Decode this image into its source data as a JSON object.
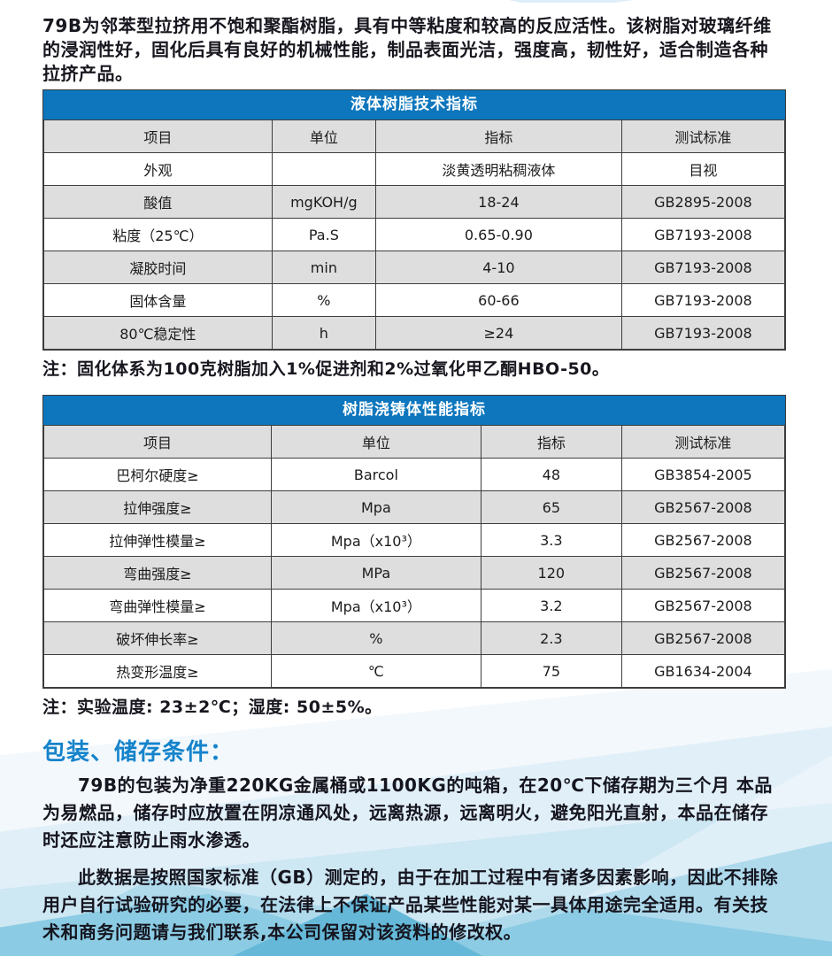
{
  "colors": {
    "table_header_blue": "#0d76bd",
    "section_heading_blue": "#1583cb",
    "row_alt_gray": "#dedede"
  },
  "intro": "79B为邻苯型拉挤用不饱和聚酯树脂，具有中等粘度和较高的反应活性。该树脂对玻璃纤维的浸润性好，固化后具有良好的机械性能，制品表面光洁，强度高，韧性好，适合制造各种拉挤产品。",
  "table1": {
    "title": "液体树脂技术指标",
    "headers": [
      "项目",
      "单位",
      "指标",
      "测试标准"
    ],
    "rows": [
      [
        "外观",
        "",
        "淡黄透明粘稠液体",
        "目视"
      ],
      [
        "酸值",
        "mgKOH/g",
        "18-24",
        "GB2895-2008"
      ],
      [
        "粘度（25℃）",
        "Pa.S",
        "0.65-0.90",
        "GB7193-2008"
      ],
      [
        "凝胶时间",
        "min",
        "4-10",
        "GB7193-2008"
      ],
      [
        "固体含量",
        "%",
        "60-66",
        "GB7193-2008"
      ],
      [
        "80℃稳定性",
        "h",
        "≥24",
        "GB7193-2008"
      ]
    ],
    "note": "注：固化体系为100克树脂加入1%促进剂和2%过氧化甲乙酮HBO-50。"
  },
  "table2": {
    "title": "树脂浇铸体性能指标",
    "headers": [
      "项目",
      "单位",
      "指标",
      "测试标准"
    ],
    "rows": [
      [
        "巴柯尔硬度≥",
        "Barcol",
        "48",
        "GB3854-2005"
      ],
      [
        "拉伸强度≥",
        "Mpa",
        "65",
        "GB2567-2008"
      ],
      [
        "拉伸弹性模量≥",
        "Mpa（x10³）",
        "3.3",
        "GB2567-2008"
      ],
      [
        "弯曲强度≥",
        "MPa",
        "120",
        "GB2567-2008"
      ],
      [
        "弯曲弹性模量≥",
        "Mpa（x10³）",
        "3.2",
        "GB2567-2008"
      ],
      [
        "破坏伸长率≥",
        "%",
        "2.3",
        "GB2567-2008"
      ],
      [
        "热变形温度≥",
        "℃",
        "75",
        "GB1634-2004"
      ]
    ],
    "note": "注：实验温度: 23±2℃；湿度: 50±5%。"
  },
  "storage": {
    "heading": "包装、储存条件：",
    "p1": "79B的包装为净重220KG金属桶或1100KG的吨箱，在20℃下储存期为三个月 本品为易燃品，储存时应放置在阴凉通风处，远离热源，远离明火，避免阳光直射，本品在储存时还应注意防止雨水渗透。",
    "p2": "此数据是按照国家标准（GB）测定的，由于在加工过程中有诸多因素影响，因此不排除用户自行试验研究的必要，在法律上不保证产品某些性能对某一具体用途完全适用。有关技术和商务问题请与我们联系,本公司保留对该资料的修改权。"
  }
}
